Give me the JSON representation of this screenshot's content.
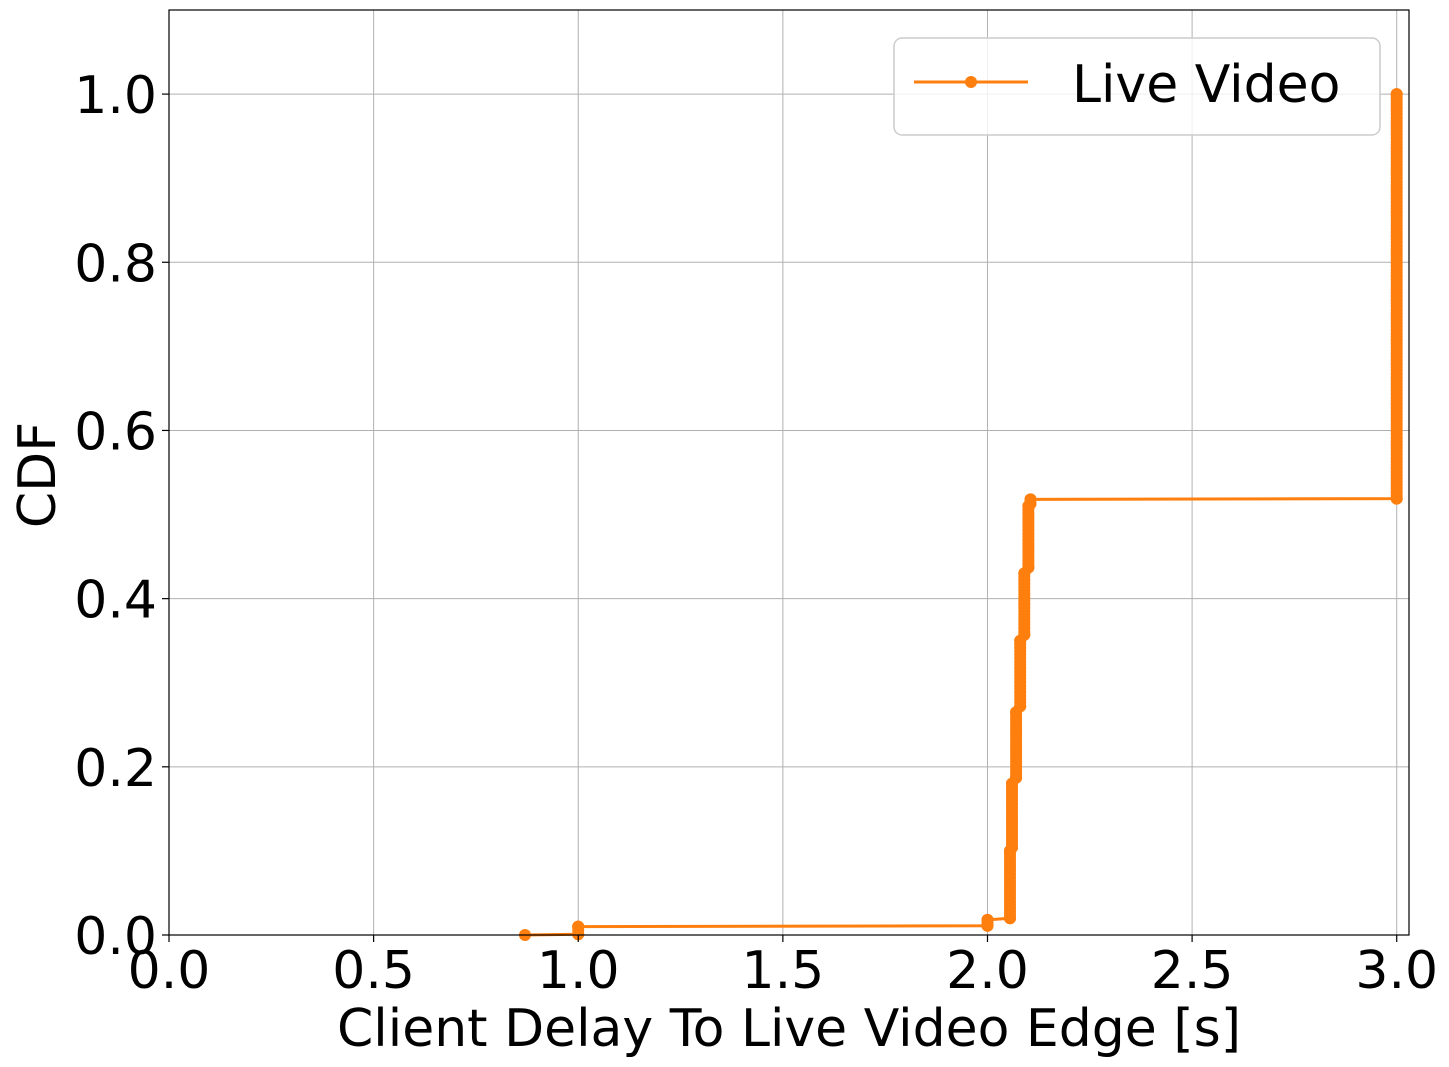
{
  "chart_data": {
    "type": "line",
    "xlabel": "Client Delay To Live Video Edge [s]",
    "ylabel": "CDF",
    "xlim": [
      0,
      3.03
    ],
    "ylim": [
      0,
      1.1
    ],
    "x_ticks": [
      0.0,
      0.5,
      1.0,
      1.5,
      2.0,
      2.5,
      3.0
    ],
    "x_tick_labels": [
      "0.0",
      "0.5",
      "1.0",
      "1.5",
      "2.0",
      "2.5",
      "3.0"
    ],
    "y_ticks": [
      0.0,
      0.2,
      0.4,
      0.6,
      0.8,
      1.0
    ],
    "y_tick_labels": [
      "0.0",
      "0.2",
      "0.4",
      "0.6",
      "0.8",
      "1.0"
    ],
    "grid": true,
    "legend_position": "top-right",
    "series": [
      {
        "name": "Live Video",
        "color": "#ff7f0e",
        "marker": "circle",
        "x": [
          0.87,
          1.0,
          1.0,
          2.0,
          2.0,
          2.055,
          2.055,
          2.06,
          2.06,
          2.07,
          2.07,
          2.08,
          2.08,
          2.09,
          2.09,
          2.1,
          2.1,
          2.105,
          2.105,
          3.0,
          3.0
        ],
        "y": [
          0.0,
          0.001,
          0.01,
          0.011,
          0.018,
          0.02,
          0.1,
          0.104,
          0.18,
          0.187,
          0.265,
          0.272,
          0.35,
          0.357,
          0.43,
          0.437,
          0.51,
          0.513,
          0.518,
          0.519,
          1.0
        ]
      }
    ]
  }
}
